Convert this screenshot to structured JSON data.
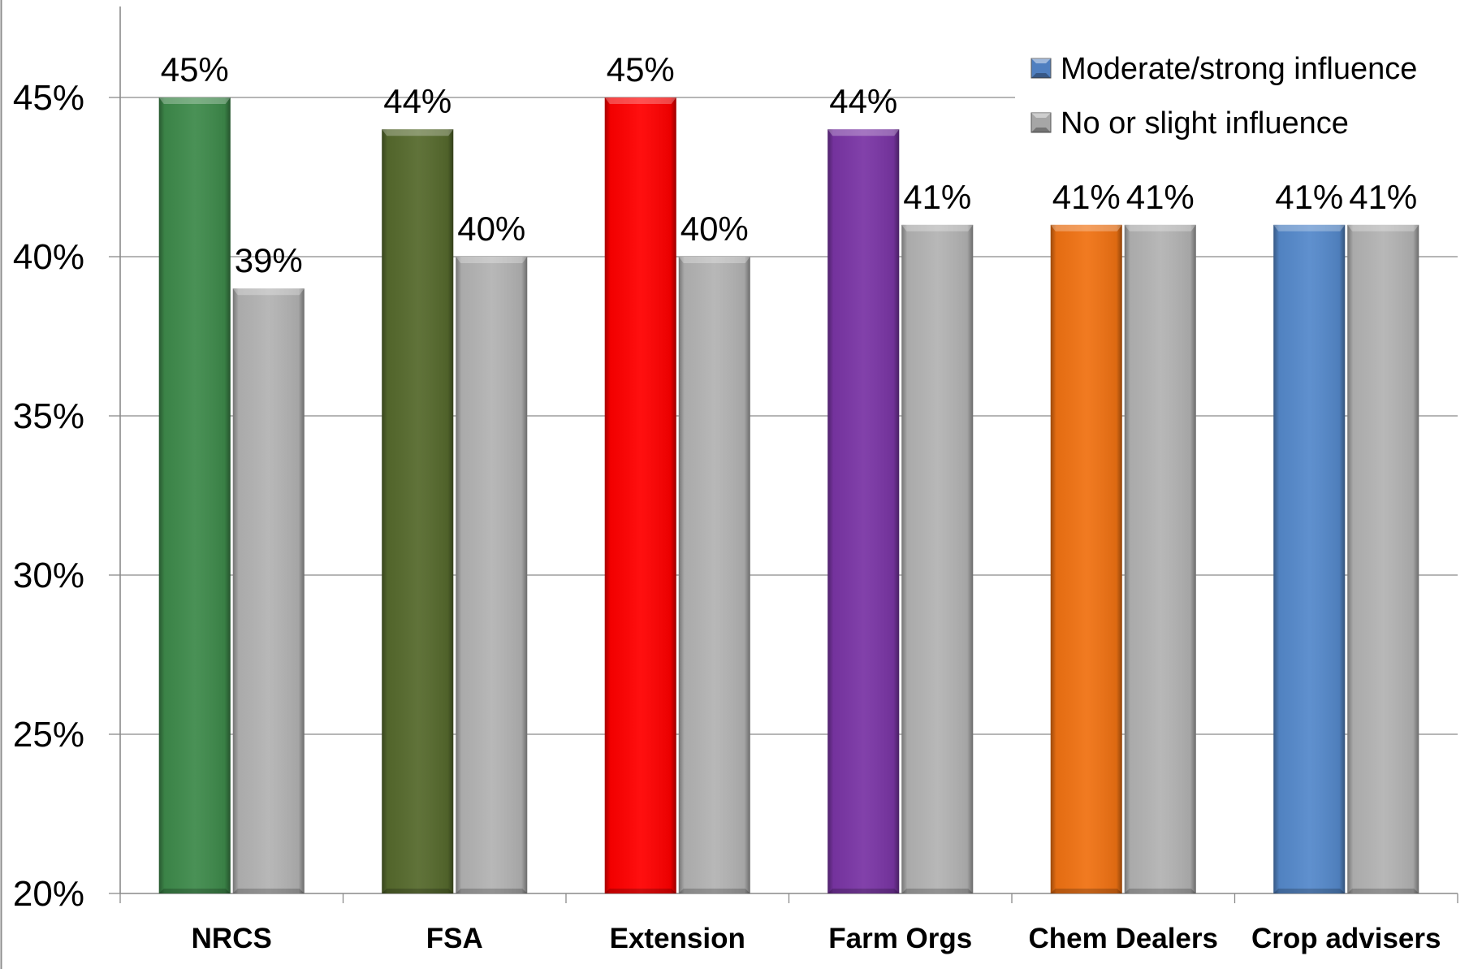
{
  "chart_data": {
    "type": "bar",
    "categories": [
      "NRCS",
      "FSA",
      "Extension",
      "Farm Orgs",
      "Chem Dealers",
      "Crop advisers"
    ],
    "series": [
      {
        "name": "Moderate/strong influence",
        "values": [
          45,
          44,
          45,
          44,
          41,
          41
        ],
        "labels": [
          "45%",
          "44%",
          "45%",
          "44%",
          "41%",
          "41%"
        ],
        "colors": [
          "#3e8a4b",
          "#566a2d",
          "#ff0000",
          "#7a35a5",
          "#f07213",
          "#5589cb"
        ],
        "legend_color": "#4f7fc0"
      },
      {
        "name": "No or slight influence",
        "values": [
          39,
          40,
          40,
          41,
          41,
          41
        ],
        "labels": [
          "39%",
          "40%",
          "40%",
          "41%",
          "41%",
          "41%"
        ],
        "colors": [
          "#b3b3b3",
          "#b3b3b3",
          "#b3b3b3",
          "#b3b3b3",
          "#b3b3b3",
          "#b3b3b3"
        ],
        "legend_color": "#a6a6a6"
      }
    ],
    "y_ticks": [
      "20%",
      "25%",
      "30%",
      "35%",
      "40%",
      "45%"
    ],
    "y_tick_values": [
      20,
      25,
      30,
      35,
      40,
      45
    ],
    "ylim": [
      20,
      47.5
    ],
    "grid": true,
    "legend_position": "top-right",
    "title": "",
    "xlabel": "",
    "ylabel": ""
  }
}
